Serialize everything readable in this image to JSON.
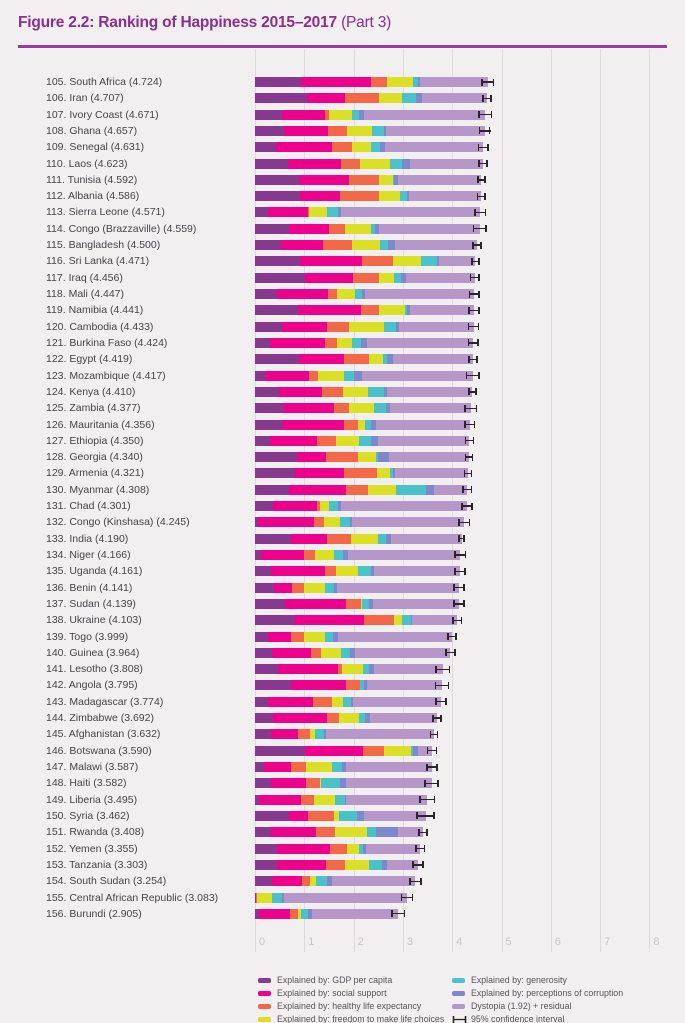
{
  "header": {
    "title_bold": "Figure 2.2: Ranking of Happiness 2015–2017",
    "title_light": "(Part 3)"
  },
  "colors": {
    "title": "#8e2d90",
    "rule": "#9a3a9b",
    "background": "#f1eff0",
    "gridline": "#dddadc",
    "axis_tick_text": "#c9c6c8",
    "label_text": "#454547",
    "ci": "#2a2526"
  },
  "chart_data": {
    "type": "bar",
    "orientation": "horizontal",
    "stacked": true,
    "title": "Figure 2.2: Ranking of Happiness 2015–2017 (Part 3)",
    "xlabel": "",
    "ylabel": "",
    "xlim": [
      0,
      8
    ],
    "x_ticks": [
      0,
      1,
      2,
      3,
      4,
      5,
      6,
      7,
      8
    ],
    "grid": true,
    "legend_position": "bottom",
    "ci_label": "95% confidence interval",
    "series": [
      {
        "key": "gdp",
        "name": "Explained by: GDP per capita",
        "color": "#87398f"
      },
      {
        "key": "social-support",
        "name": "Explained by: social support",
        "color": "#ec008c"
      },
      {
        "key": "healthy-life",
        "name": "Explained by: healthy life expectancy",
        "color": "#f26849"
      },
      {
        "key": "freedom",
        "name": "Explained by: freedom to make life choices",
        "color": "#dbdf26"
      },
      {
        "key": "generosity",
        "name": "Explained by: generosity",
        "color": "#4bc2c9"
      },
      {
        "key": "corruption",
        "name": "Explained by: perceptions of corruption",
        "color": "#7d89cd"
      },
      {
        "key": "dystopia-residual",
        "name": "Dystopia (1.92) + residual",
        "color": "#b598c9"
      }
    ],
    "rows": [
      {
        "rank": 105,
        "country": "South Africa",
        "score": 4.724,
        "values": [
          0.94,
          1.41,
          0.33,
          0.516,
          0.103,
          0.056,
          1.369
        ],
        "ci": 0.13
      },
      {
        "rank": 106,
        "country": "Iran",
        "score": 4.707,
        "values": [
          1.059,
          0.771,
          0.691,
          0.459,
          0.282,
          0.133,
          1.312
        ],
        "ci": 0.1
      },
      {
        "rank": 107,
        "country": "Ivory Coast",
        "score": 4.671,
        "values": [
          0.541,
          0.872,
          0.08,
          0.467,
          0.146,
          0.103,
          2.462
        ],
        "ci": 0.14
      },
      {
        "rank": 108,
        "country": "Ghana",
        "score": 4.657,
        "values": [
          0.592,
          0.899,
          0.38,
          0.508,
          0.245,
          0.042,
          1.991
        ],
        "ci": 0.12
      },
      {
        "rank": 109,
        "country": "Senegal",
        "score": 4.631,
        "values": [
          0.429,
          1.134,
          0.409,
          0.377,
          0.183,
          0.115,
          1.984
        ],
        "ci": 0.11
      },
      {
        "rank": 110,
        "country": "Laos",
        "score": 4.623,
        "values": [
          0.672,
          1.079,
          0.375,
          0.608,
          0.24,
          0.179,
          1.47
        ],
        "ci": 0.1
      },
      {
        "rank": 111,
        "country": "Tunisia",
        "score": 4.592,
        "values": [
          0.891,
          1.006,
          0.614,
          0.281,
          0.03,
          0.086,
          1.684
        ],
        "ci": 0.09
      },
      {
        "rank": 112,
        "country": "Albania",
        "score": 4.586,
        "values": [
          0.916,
          0.817,
          0.79,
          0.419,
          0.149,
          0.032,
          1.463
        ],
        "ci": 0.09
      },
      {
        "rank": 113,
        "country": "Sierra Leone",
        "score": 4.571,
        "values": [
          0.256,
          0.813,
          0.029,
          0.355,
          0.238,
          0.053,
          2.827
        ],
        "ci": 0.12
      },
      {
        "rank": 114,
        "country": "Congo (Brazzaville)",
        "score": 4.559,
        "values": [
          0.682,
          0.811,
          0.343,
          0.514,
          0.093,
          0.077,
          2.039
        ],
        "ci": 0.14
      },
      {
        "rank": 115,
        "country": "Bangladesh",
        "score": 4.5,
        "values": [
          0.532,
          0.85,
          0.579,
          0.58,
          0.153,
          0.144,
          1.662
        ],
        "ci": 0.1
      },
      {
        "rank": 116,
        "country": "Sri Lanka",
        "score": 4.471,
        "values": [
          0.918,
          1.259,
          0.625,
          0.561,
          0.331,
          0.047,
          0.73
        ],
        "ci": 0.09
      },
      {
        "rank": 117,
        "country": "Iraq",
        "score": 4.456,
        "values": [
          1.01,
          0.971,
          0.536,
          0.304,
          0.148,
          0.095,
          1.392
        ],
        "ci": 0.1
      },
      {
        "rank": 118,
        "country": "Mali",
        "score": 4.447,
        "values": [
          0.447,
          1.028,
          0.189,
          0.373,
          0.141,
          0.056,
          2.213
        ],
        "ci": 0.11
      },
      {
        "rank": 119,
        "country": "Namibia",
        "score": 4.441,
        "values": [
          0.874,
          1.281,
          0.365,
          0.519,
          0.051,
          0.064,
          1.287
        ],
        "ci": 0.12
      },
      {
        "rank": 120,
        "country": "Cambodia",
        "score": 4.433,
        "values": [
          0.549,
          0.914,
          0.45,
          0.696,
          0.252,
          0.063,
          1.509
        ],
        "ci": 0.12
      },
      {
        "rank": 121,
        "country": "Burkina Faso",
        "score": 4.424,
        "values": [
          0.314,
          1.097,
          0.254,
          0.312,
          0.175,
          0.128,
          2.144
        ],
        "ci": 0.11
      },
      {
        "rank": 122,
        "country": "Egypt",
        "score": 4.419,
        "values": [
          0.895,
          0.903,
          0.51,
          0.282,
          0.091,
          0.114,
          1.624
        ],
        "ci": 0.1
      },
      {
        "rank": 123,
        "country": "Mozambique",
        "score": 4.417,
        "values": [
          0.198,
          0.902,
          0.173,
          0.531,
          0.206,
          0.158,
          2.249
        ],
        "ci": 0.14
      },
      {
        "rank": 124,
        "country": "Kenya",
        "score": 4.41,
        "values": [
          0.493,
          0.863,
          0.421,
          0.506,
          0.341,
          0.061,
          1.725
        ],
        "ci": 0.09
      },
      {
        "rank": 125,
        "country": "Zambia",
        "score": 4.377,
        "values": [
          0.562,
          1.047,
          0.295,
          0.503,
          0.247,
          0.087,
          1.636
        ],
        "ci": 0.13
      },
      {
        "rank": 126,
        "country": "Mauritania",
        "score": 4.356,
        "values": [
          0.557,
          1.245,
          0.292,
          0.129,
          0.134,
          0.093,
          1.906
        ],
        "ci": 0.11
      },
      {
        "rank": 127,
        "country": "Ethiopia",
        "score": 4.35,
        "values": [
          0.308,
          0.95,
          0.391,
          0.452,
          0.247,
          0.146,
          1.856
        ],
        "ci": 0.1
      },
      {
        "rank": 128,
        "country": "Georgia",
        "score": 4.34,
        "values": [
          0.853,
          0.592,
          0.643,
          0.375,
          0.038,
          0.215,
          1.624
        ],
        "ci": 0.09
      },
      {
        "rank": 129,
        "country": "Armenia",
        "score": 4.321,
        "values": [
          0.816,
          0.99,
          0.666,
          0.26,
          0.077,
          0.028,
          1.484
        ],
        "ci": 0.09
      },
      {
        "rank": 130,
        "country": "Myanmar",
        "score": 4.308,
        "values": [
          0.682,
          1.174,
          0.429,
          0.58,
          0.598,
          0.178,
          0.667
        ],
        "ci": 0.1
      },
      {
        "rank": 131,
        "country": "Chad",
        "score": 4.301,
        "values": [
          0.358,
          0.907,
          0.053,
          0.188,
          0.181,
          0.056,
          2.558
        ],
        "ci": 0.12
      },
      {
        "rank": 132,
        "country": "Congo (Kinshasa)",
        "score": 4.245,
        "values": [
          0.069,
          1.136,
          0.204,
          0.312,
          0.197,
          0.052,
          2.275
        ],
        "ci": 0.12
      },
      {
        "rank": 133,
        "country": "India",
        "score": 4.19,
        "values": [
          0.721,
          0.747,
          0.485,
          0.539,
          0.172,
          0.093,
          1.433
        ],
        "ci": 0.07
      },
      {
        "rank": 134,
        "country": "Niger",
        "score": 4.166,
        "values": [
          0.131,
          0.867,
          0.221,
          0.39,
          0.175,
          0.099,
          2.283
        ],
        "ci": 0.12
      },
      {
        "rank": 135,
        "country": "Uganda",
        "score": 4.161,
        "values": [
          0.322,
          1.09,
          0.237,
          0.45,
          0.259,
          0.061,
          1.742
        ],
        "ci": 0.12
      },
      {
        "rank": 136,
        "country": "Benin",
        "score": 4.141,
        "values": [
          0.378,
          0.372,
          0.24,
          0.44,
          0.163,
          0.067,
          2.481
        ],
        "ci": 0.12
      },
      {
        "rank": 137,
        "country": "Sudan",
        "score": 4.139,
        "values": [
          0.605,
          1.24,
          0.312,
          0.016,
          0.134,
          0.082,
          1.75
        ],
        "ci": 0.12
      },
      {
        "rank": 138,
        "country": "Ukraine",
        "score": 4.103,
        "values": [
          0.793,
          1.413,
          0.609,
          0.163,
          0.187,
          0.011,
          0.927
        ],
        "ci": 0.1
      },
      {
        "rank": 139,
        "country": "Togo",
        "score": 3.999,
        "values": [
          0.259,
          0.474,
          0.253,
          0.434,
          0.158,
          0.101,
          2.32
        ],
        "ci": 0.1
      },
      {
        "rank": 140,
        "country": "Guinea",
        "score": 3.964,
        "values": [
          0.344,
          0.792,
          0.211,
          0.394,
          0.185,
          0.094,
          1.944
        ],
        "ci": 0.11
      },
      {
        "rank": 141,
        "country": "Lesotho",
        "score": 3.808,
        "values": [
          0.472,
          1.215,
          0.079,
          0.423,
          0.116,
          0.112,
          1.391
        ],
        "ci": 0.15
      },
      {
        "rank": 142,
        "country": "Angola",
        "score": 3.795,
        "values": [
          0.73,
          1.125,
          0.269,
          0.0,
          0.079,
          0.061,
          1.531
        ],
        "ci": 0.15
      },
      {
        "rank": 143,
        "country": "Madagascar",
        "score": 3.774,
        "values": [
          0.262,
          0.908,
          0.402,
          0.221,
          0.155,
          0.049,
          1.777
        ],
        "ci": 0.12
      },
      {
        "rank": 144,
        "country": "Zimbabwe",
        "score": 3.692,
        "values": [
          0.357,
          1.094,
          0.248,
          0.406,
          0.132,
          0.099,
          1.356
        ],
        "ci": 0.1
      },
      {
        "rank": 145,
        "country": "Afghanistan",
        "score": 3.632,
        "values": [
          0.332,
          0.537,
          0.255,
          0.085,
          0.191,
          0.036,
          2.196
        ],
        "ci": 0.09
      },
      {
        "rank": 146,
        "country": "Botswana",
        "score": 3.59,
        "values": [
          1.017,
          1.174,
          0.417,
          0.557,
          0.042,
          0.092,
          0.291
        ],
        "ci": 0.11
      },
      {
        "rank": 147,
        "country": "Malawi",
        "score": 3.587,
        "values": [
          0.186,
          0.541,
          0.306,
          0.531,
          0.21,
          0.08,
          1.733
        ],
        "ci": 0.12
      },
      {
        "rank": 148,
        "country": "Haiti",
        "score": 3.582,
        "values": [
          0.315,
          0.714,
          0.289,
          0.025,
          0.392,
          0.104,
          1.743
        ],
        "ci": 0.15
      },
      {
        "rank": 149,
        "country": "Liberia",
        "score": 3.495,
        "values": [
          0.076,
          0.858,
          0.267,
          0.419,
          0.206,
          0.03,
          1.639
        ],
        "ci": 0.16
      },
      {
        "rank": 150,
        "country": "Syria",
        "score": 3.462,
        "values": [
          0.689,
          0.382,
          0.539,
          0.088,
          0.376,
          0.144,
          1.244
        ],
        "ci": 0.19
      },
      {
        "rank": 151,
        "country": "Rwanda",
        "score": 3.408,
        "values": [
          0.332,
          0.896,
          0.4,
          0.636,
          0.2,
          0.444,
          0.5
        ],
        "ci": 0.1
      },
      {
        "rank": 152,
        "country": "Yemen",
        "score": 3.355,
        "values": [
          0.442,
          1.073,
          0.343,
          0.244,
          0.083,
          0.064,
          1.106
        ],
        "ci": 0.1
      },
      {
        "rank": 153,
        "country": "Tanzania",
        "score": 3.303,
        "values": [
          0.455,
          0.991,
          0.381,
          0.481,
          0.27,
          0.097,
          0.628
        ],
        "ci": 0.12
      },
      {
        "rank": 154,
        "country": "South Sudan",
        "score": 3.254,
        "values": [
          0.337,
          0.608,
          0.177,
          0.112,
          0.224,
          0.106,
          1.69
        ],
        "ci": 0.13
      },
      {
        "rank": 155,
        "country": "Central African Republic",
        "score": 3.083,
        "values": [
          0.024,
          0.0,
          0.01,
          0.305,
          0.218,
          0.038,
          2.488
        ],
        "ci": 0.13
      },
      {
        "rank": 156,
        "country": "Burundi",
        "score": 2.905,
        "values": [
          0.091,
          0.627,
          0.145,
          0.065,
          0.149,
          0.076,
          1.752
        ],
        "ci": 0.14
      }
    ]
  }
}
